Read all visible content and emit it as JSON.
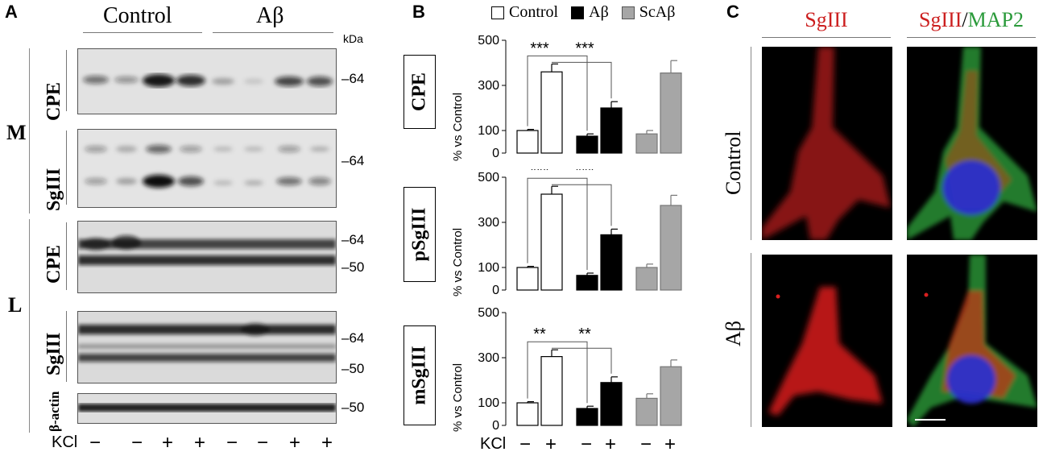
{
  "panel_a": {
    "letter": "A",
    "group_control": "Control",
    "group_abeta": "Aβ",
    "kda": "kDa",
    "row_m": "M",
    "row_l": "L",
    "blots": [
      {
        "label": "CPE",
        "markers": [
          "64"
        ]
      },
      {
        "label": "SgIII",
        "markers": [
          "64"
        ]
      },
      {
        "label": "CPE",
        "markers": [
          "64",
          "50"
        ]
      },
      {
        "label": "SgIII",
        "markers": [
          "64",
          "50"
        ]
      },
      {
        "label": "β-actin",
        "markers": [
          "50"
        ]
      }
    ],
    "kcl_label": "KCl",
    "kcl_marks": [
      "−",
      "−",
      "+",
      "+",
      "−",
      "−",
      "+",
      "+"
    ]
  },
  "panel_b": {
    "letter": "B",
    "legend": [
      "Control",
      "Aβ",
      "ScAβ"
    ],
    "colors": {
      "control": "#ffffff",
      "abeta": "#000000",
      "scabeta": "#a6a6a6"
    },
    "ylabel": "% vs Control",
    "kcl_label": "KCl",
    "kcl_marks": [
      "−",
      "+",
      "−",
      "+",
      "−",
      "+"
    ]
  },
  "chart_data": [
    {
      "type": "bar",
      "title": "CPE",
      "ylabel": "% vs Control",
      "categories": [
        "Control −",
        "Control +",
        "Aβ −",
        "Aβ +",
        "ScAβ −",
        "ScAβ +"
      ],
      "values": [
        100,
        360,
        75,
        200,
        85,
        355
      ],
      "errors": [
        5,
        35,
        10,
        28,
        15,
        55
      ],
      "ylim": [
        0,
        500
      ],
      "yticks": [
        "500",
        "300",
        "100",
        "0"
      ],
      "significance": [
        "***",
        "***"
      ]
    },
    {
      "type": "bar",
      "title": "pSgIII",
      "ylabel": "% vs Control",
      "categories": [
        "Control −",
        "Control +",
        "Aβ −",
        "Aβ +",
        "ScAβ −",
        "ScAβ +"
      ],
      "values": [
        100,
        425,
        65,
        245,
        100,
        375
      ],
      "errors": [
        5,
        35,
        10,
        25,
        15,
        45
      ],
      "ylim": [
        0,
        500
      ],
      "yticks": [
        "500",
        "300",
        "100",
        "0"
      ],
      "significance": [
        "***",
        "***"
      ]
    },
    {
      "type": "bar",
      "title": "mSgIII",
      "ylabel": "% vs Control",
      "categories": [
        "Control −",
        "Control +",
        "Aβ −",
        "Aβ +",
        "ScAβ −",
        "ScAβ +"
      ],
      "values": [
        100,
        305,
        75,
        190,
        120,
        260
      ],
      "errors": [
        5,
        30,
        10,
        25,
        20,
        30
      ],
      "ylim": [
        0,
        500
      ],
      "yticks": [
        "500",
        "300",
        "100",
        "0"
      ],
      "significance": [
        "**",
        "**"
      ]
    }
  ],
  "panel_c": {
    "letter": "C",
    "col1_title": "SgIII",
    "col2_title_a": "SgIII",
    "col2_title_sep": "/",
    "col2_title_b": "MAP2",
    "row1_label": "Control",
    "row2_label": "Aβ",
    "colors": {
      "sgiii": "#cc1f1f",
      "map2": "#2a9a3a"
    }
  }
}
